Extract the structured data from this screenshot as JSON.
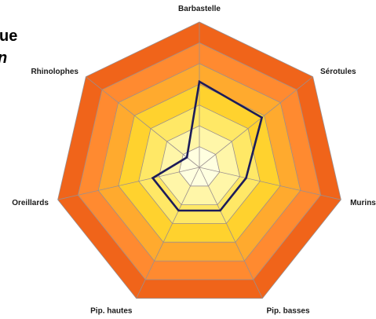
{
  "chart_data": {
    "type": "radar",
    "title_fragments": [
      "ue",
      "n"
    ],
    "categories": [
      "Barbastelle",
      "Sérotules",
      "Murins",
      "Pip. basses",
      "Pip. hautes",
      "Oreillards",
      "Rhinolophes"
    ],
    "series": [
      {
        "values": [
          0.59,
          0.55,
          0.33,
          0.33,
          0.33,
          0.33,
          0.11
        ],
        "color": "#1c1c5a"
      }
    ],
    "rlim": [
      0,
      1
    ],
    "rings": 7,
    "grid": true,
    "legend": "none",
    "band_colors": [
      "#ffffe0",
      "#fff6a8",
      "#ffe866",
      "#ffd22e",
      "#ffaa2e",
      "#ff8a30",
      "#f0641a"
    ],
    "grid_color": "#9a8f8f"
  }
}
